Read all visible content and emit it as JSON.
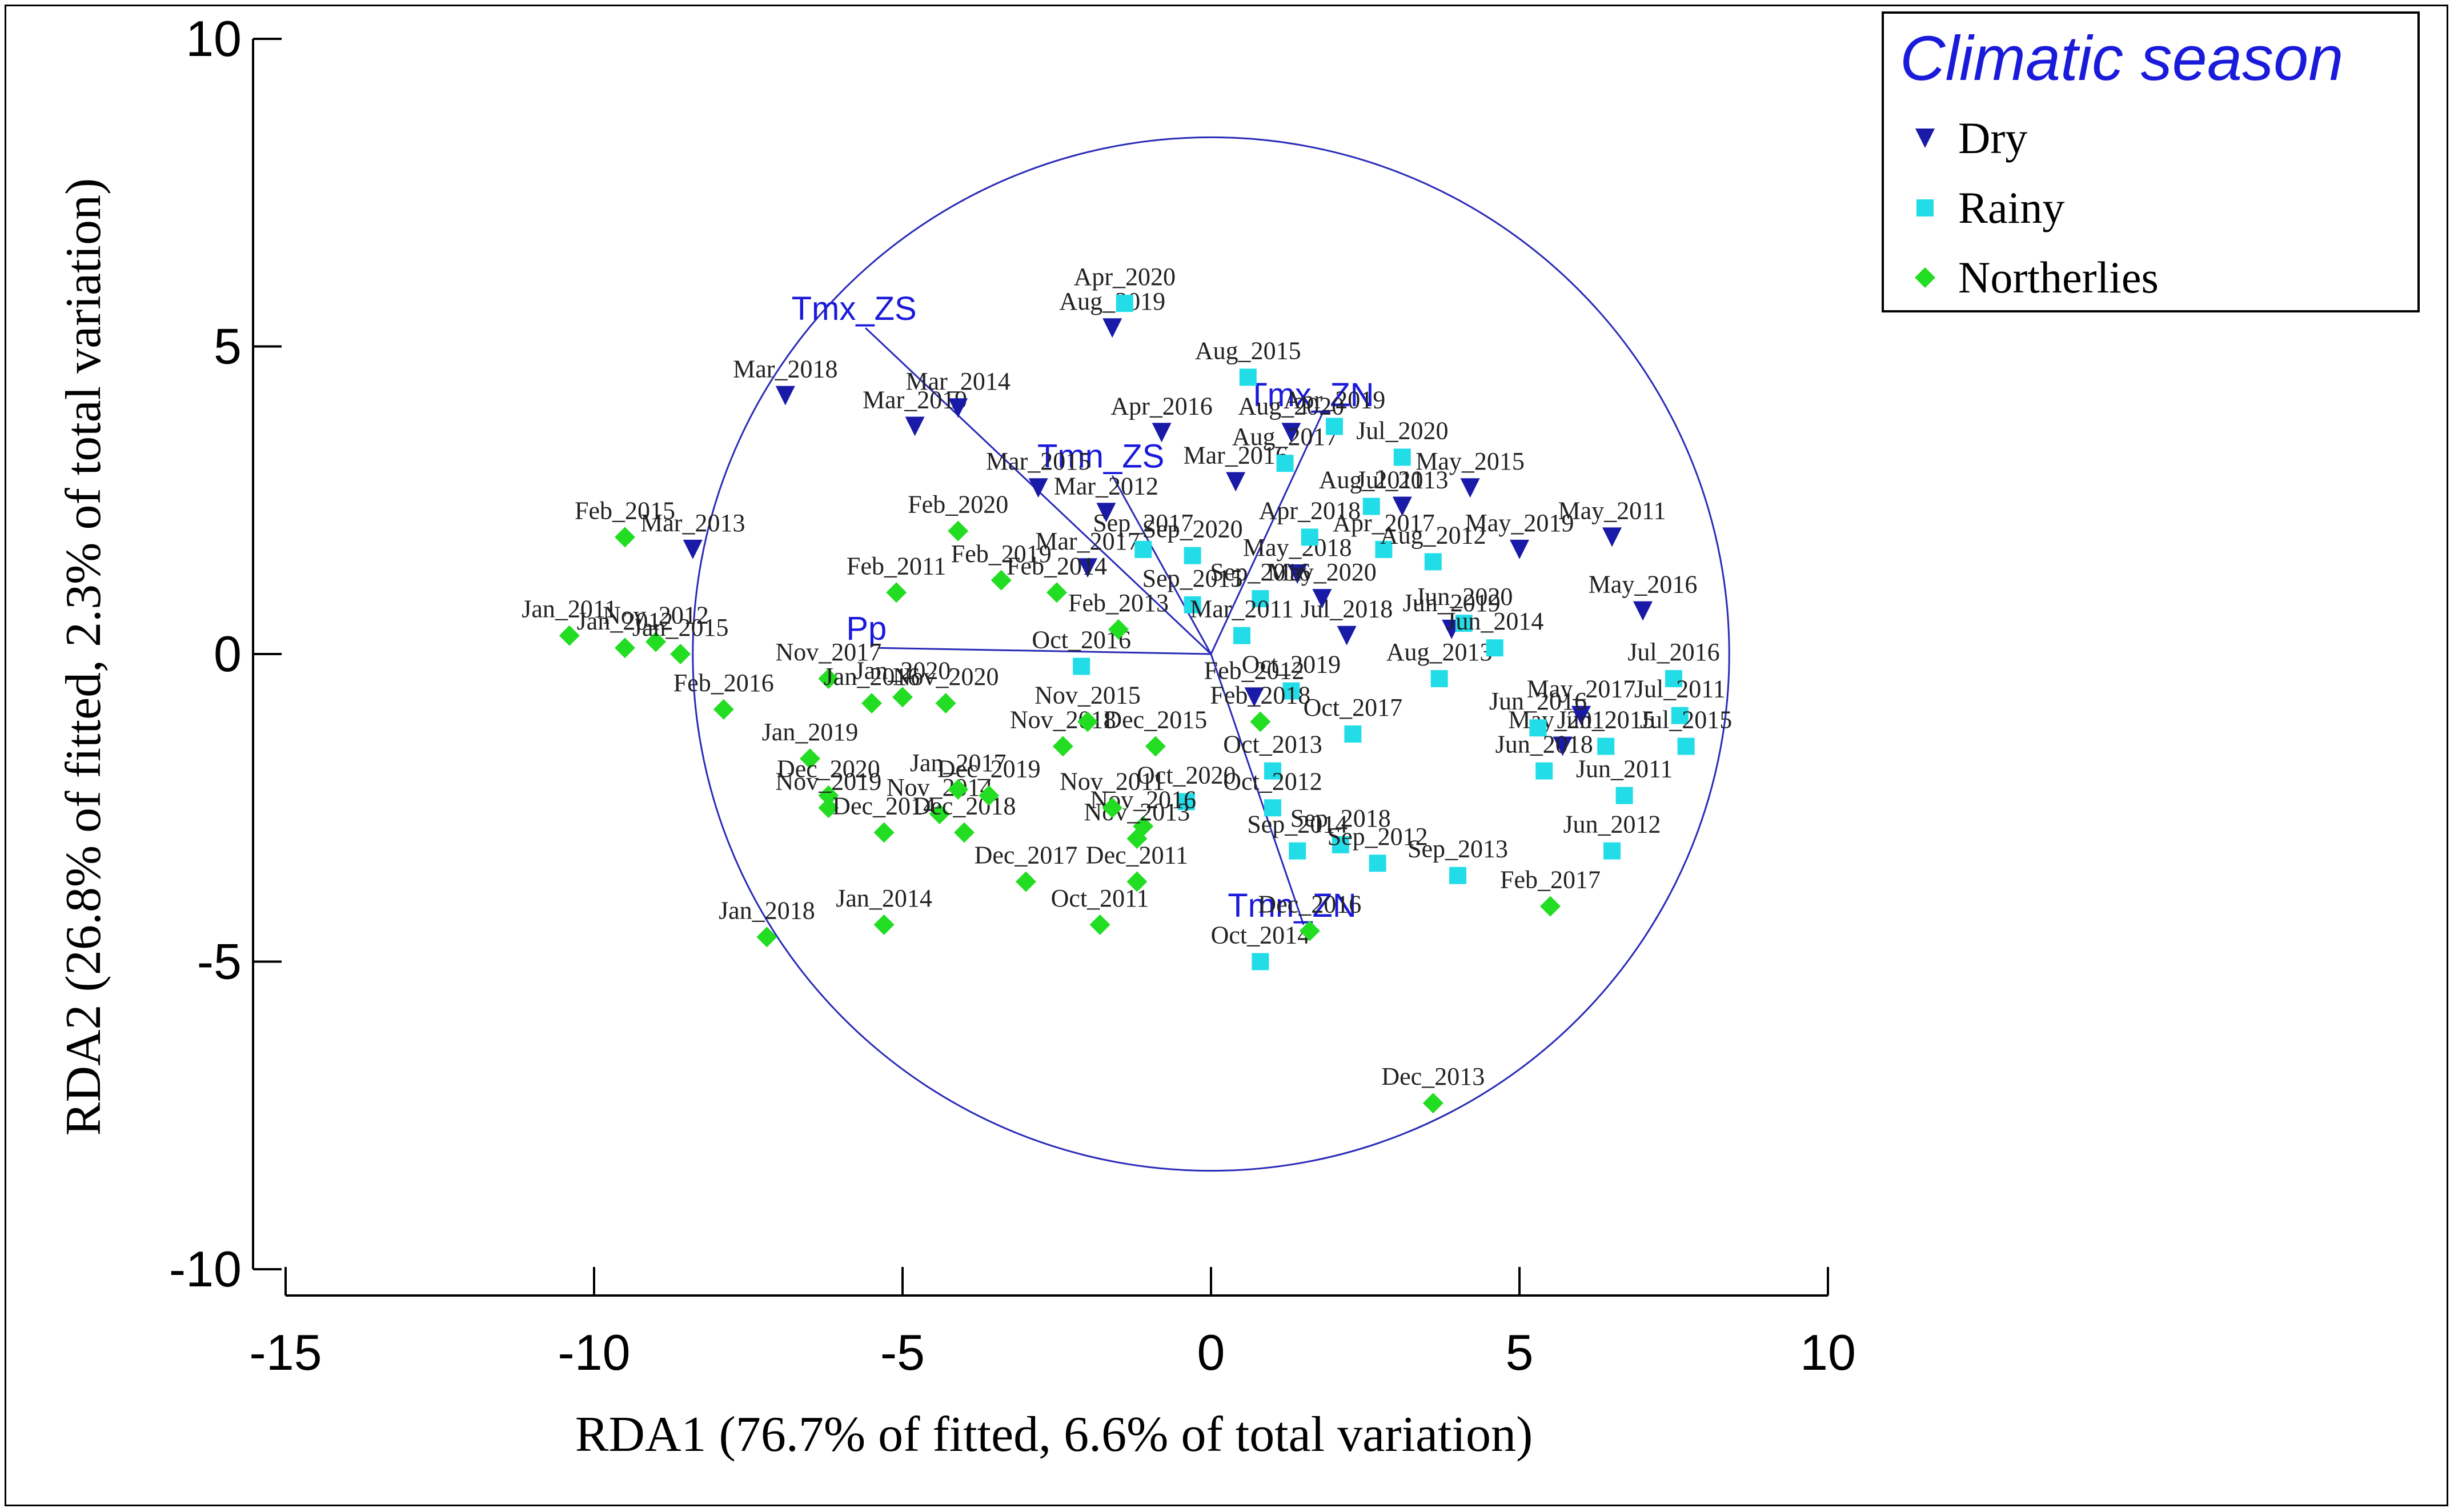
{
  "chart_data": {
    "type": "scatter",
    "xlabel": "RDA1 (76.7% of fitted, 6.6% of total variation)",
    "ylabel": "RDA2 (26.8% of fitted, 2.3% of total variation)",
    "xlim": [
      -15,
      10
    ],
    "ylim": [
      -10,
      10
    ],
    "xticks": [
      -15,
      -10,
      -5,
      0,
      5,
      10
    ],
    "yticks": [
      -10,
      -5,
      0,
      5,
      10
    ],
    "legend": {
      "title": "Climatic season",
      "position": "top-right",
      "items": [
        {
          "name": "Dry",
          "marker": "triangle-down",
          "color": "#1a1aa8"
        },
        {
          "name": "Rainy",
          "marker": "square",
          "color": "#22dde8"
        },
        {
          "name": "Northerlies",
          "marker": "diamond",
          "color": "#22dd22"
        }
      ]
    },
    "circle": {
      "center": [
        -0.0,
        -0.0
      ],
      "radius": 8.4
    },
    "vectors": [
      {
        "label": "Tmx_ZS",
        "x": -5.6,
        "y": 5.3
      },
      {
        "label": "Tmx_ZN",
        "x": 1.8,
        "y": 3.9
      },
      {
        "label": "Tmn_ZS",
        "x": -1.6,
        "y": 2.9
      },
      {
        "label": "Tmn_ZN",
        "x": 1.5,
        "y": -4.4
      },
      {
        "label": "Pp",
        "x": -5.4,
        "y": 0.1
      }
    ],
    "series": [
      {
        "name": "Dry",
        "points": [
          {
            "x": -6.9,
            "y": 4.2,
            "label": "Mar_2018"
          },
          {
            "x": -4.8,
            "y": 3.7,
            "label": "Mar_2019"
          },
          {
            "x": -4.1,
            "y": 4.0,
            "label": "Mar_2014"
          },
          {
            "x": -8.4,
            "y": 1.7,
            "label": "Mar_2013"
          },
          {
            "x": -2.8,
            "y": 2.7,
            "label": "Mar_2015"
          },
          {
            "x": -1.6,
            "y": 5.3,
            "label": "Aug_2019"
          },
          {
            "x": -0.8,
            "y": 3.6,
            "label": "Apr_2016"
          },
          {
            "x": 0.4,
            "y": 2.8,
            "label": "Mar_2016"
          },
          {
            "x": -1.7,
            "y": 2.3,
            "label": "Mar_2012"
          },
          {
            "x": -2.0,
            "y": 1.4,
            "label": "Mar_2017"
          },
          {
            "x": 1.3,
            "y": 3.6,
            "label": "Aug_2020"
          },
          {
            "x": 1.4,
            "y": 1.3,
            "label": "May_2018"
          },
          {
            "x": 2.2,
            "y": 0.3,
            "label": "Jul_2018"
          },
          {
            "x": 0.7,
            "y": -0.7,
            "label": "Feb_2012"
          },
          {
            "x": 1.8,
            "y": 0.9,
            "label": "May_2020"
          },
          {
            "x": 3.1,
            "y": 2.4,
            "label": "Jul_2013"
          },
          {
            "x": 4.2,
            "y": 2.7,
            "label": "May_2015"
          },
          {
            "x": 5.0,
            "y": 1.7,
            "label": "May_2019"
          },
          {
            "x": 6.5,
            "y": 1.9,
            "label": "May_2011"
          },
          {
            "x": 7.0,
            "y": 0.7,
            "label": "May_2016"
          },
          {
            "x": 5.7,
            "y": -1.5,
            "label": "May_2012"
          },
          {
            "x": 6.0,
            "y": -1.0,
            "label": "May_2017"
          },
          {
            "x": 3.9,
            "y": 0.4,
            "label": "Jun_2019"
          }
        ]
      },
      {
        "name": "Rainy",
        "points": [
          {
            "x": -1.4,
            "y": 5.7,
            "label": "Apr_2020"
          },
          {
            "x": 0.6,
            "y": 4.5,
            "label": "Aug_2015"
          },
          {
            "x": 1.2,
            "y": 3.1,
            "label": "Aug_2017"
          },
          {
            "x": 2.0,
            "y": 3.7,
            "label": "Apr_2019"
          },
          {
            "x": 3.1,
            "y": 3.2,
            "label": "Jul_2020"
          },
          {
            "x": 2.6,
            "y": 2.4,
            "label": "Aug_2011"
          },
          {
            "x": 2.8,
            "y": 1.7,
            "label": "Apr_2017"
          },
          {
            "x": 1.6,
            "y": 1.9,
            "label": "Apr_2018"
          },
          {
            "x": -1.1,
            "y": 1.7,
            "label": "Sep_2017"
          },
          {
            "x": -0.3,
            "y": 1.6,
            "label": "Sep_2020"
          },
          {
            "x": -0.3,
            "y": 0.8,
            "label": "Sep_2015"
          },
          {
            "x": 0.8,
            "y": 0.9,
            "label": "Sep_2016"
          },
          {
            "x": 0.5,
            "y": 0.3,
            "label": "Mar_2011"
          },
          {
            "x": -2.1,
            "y": -0.2,
            "label": "Oct_2016"
          },
          {
            "x": 1.3,
            "y": -0.6,
            "label": "Oct_2019"
          },
          {
            "x": 2.3,
            "y": -1.3,
            "label": "Oct_2017"
          },
          {
            "x": 1.0,
            "y": -1.9,
            "label": "Oct_2013"
          },
          {
            "x": -0.4,
            "y": -2.4,
            "label": "Oct_2020"
          },
          {
            "x": 1.0,
            "y": -2.5,
            "label": "Oct_2012"
          },
          {
            "x": 1.4,
            "y": -3.2,
            "label": "Sep_2014"
          },
          {
            "x": 2.1,
            "y": -3.1,
            "label": "Sep_2018"
          },
          {
            "x": 2.7,
            "y": -3.4,
            "label": "Sep_2012"
          },
          {
            "x": 0.8,
            "y": -5.0,
            "label": "Oct_2014"
          },
          {
            "x": 3.6,
            "y": 1.5,
            "label": "Aug_2012"
          },
          {
            "x": 3.7,
            "y": -0.4,
            "label": "Aug_2013"
          },
          {
            "x": 4.1,
            "y": 0.5,
            "label": "Jun_2020"
          },
          {
            "x": 4.6,
            "y": 0.1,
            "label": "Jun_2014"
          },
          {
            "x": 5.3,
            "y": -1.2,
            "label": "Jun_2016"
          },
          {
            "x": 5.4,
            "y": -1.9,
            "label": "Jun_2018"
          },
          {
            "x": 6.4,
            "y": -1.5,
            "label": "Jun_2015"
          },
          {
            "x": 6.7,
            "y": -2.3,
            "label": "Jun_2011"
          },
          {
            "x": 6.5,
            "y": -3.2,
            "label": "Jun_2012"
          },
          {
            "x": 7.5,
            "y": -0.4,
            "label": "Jul_2016"
          },
          {
            "x": 7.6,
            "y": -1.0,
            "label": "Jul_2011"
          },
          {
            "x": 7.7,
            "y": -1.5,
            "label": "Jul_2015"
          },
          {
            "x": 4.0,
            "y": -3.6,
            "label": "Sep_2013"
          }
        ]
      },
      {
        "name": "Northerlies",
        "points": [
          {
            "x": -9.5,
            "y": 1.9,
            "label": "Feb_2015"
          },
          {
            "x": -10.4,
            "y": 0.3,
            "label": "Jan_2011"
          },
          {
            "x": -9.5,
            "y": 0.1,
            "label": "Jan_2012"
          },
          {
            "x": -9.0,
            "y": 0.2,
            "label": "Nov_2012"
          },
          {
            "x": -8.6,
            "y": 0.0,
            "label": "Jan_2015"
          },
          {
            "x": -7.9,
            "y": -0.9,
            "label": "Feb_2016"
          },
          {
            "x": -5.1,
            "y": 1.0,
            "label": "Feb_2011"
          },
          {
            "x": -4.1,
            "y": 2.0,
            "label": "Feb_2020"
          },
          {
            "x": -3.4,
            "y": 1.2,
            "label": "Feb_2019"
          },
          {
            "x": -2.5,
            "y": 1.0,
            "label": "Feb_2014"
          },
          {
            "x": -1.5,
            "y": 0.4,
            "label": "Feb_2013"
          },
          {
            "x": -6.2,
            "y": -0.4,
            "label": "Nov_2017"
          },
          {
            "x": -5.5,
            "y": -0.8,
            "label": "Jan_2016"
          },
          {
            "x": -5.0,
            "y": -0.7,
            "label": "Jan_2020"
          },
          {
            "x": -4.3,
            "y": -0.8,
            "label": "Nov_2020"
          },
          {
            "x": -6.5,
            "y": -1.7,
            "label": "Jan_2019"
          },
          {
            "x": -6.2,
            "y": -2.3,
            "label": "Dec_2020"
          },
          {
            "x": -6.2,
            "y": -2.5,
            "label": "Nov_2019"
          },
          {
            "x": -5.3,
            "y": -2.9,
            "label": "Dec_2014"
          },
          {
            "x": -4.4,
            "y": -2.6,
            "label": "Nov_2014"
          },
          {
            "x": -4.1,
            "y": -2.2,
            "label": "Jan_2017"
          },
          {
            "x": -4.0,
            "y": -2.9,
            "label": "Dec_2018"
          },
          {
            "x": -3.6,
            "y": -2.3,
            "label": "Dec_2019"
          },
          {
            "x": -2.4,
            "y": -1.5,
            "label": "Nov_2018"
          },
          {
            "x": -2.0,
            "y": -1.1,
            "label": "Nov_2015"
          },
          {
            "x": -0.9,
            "y": -1.5,
            "label": "Dec_2015"
          },
          {
            "x": 0.8,
            "y": -1.1,
            "label": "Feb_2018"
          },
          {
            "x": -1.1,
            "y": -2.8,
            "label": "Nov_2016"
          },
          {
            "x": -1.2,
            "y": -3.0,
            "label": "Nov_2013"
          },
          {
            "x": -1.6,
            "y": -2.5,
            "label": "Nov_2011"
          },
          {
            "x": -3.0,
            "y": -3.7,
            "label": "Dec_2017"
          },
          {
            "x": -1.2,
            "y": -3.7,
            "label": "Dec_2011"
          },
          {
            "x": -7.2,
            "y": -4.6,
            "label": "Jan_2018"
          },
          {
            "x": -5.3,
            "y": -4.4,
            "label": "Jan_2014"
          },
          {
            "x": -1.8,
            "y": -4.4,
            "label": "Oct_2011"
          },
          {
            "x": 1.6,
            "y": -4.5,
            "label": "Dec_2016"
          },
          {
            "x": 5.5,
            "y": -4.1,
            "label": "Feb_2017"
          },
          {
            "x": 3.6,
            "y": -7.3,
            "label": "Dec_2013"
          }
        ]
      }
    ]
  }
}
